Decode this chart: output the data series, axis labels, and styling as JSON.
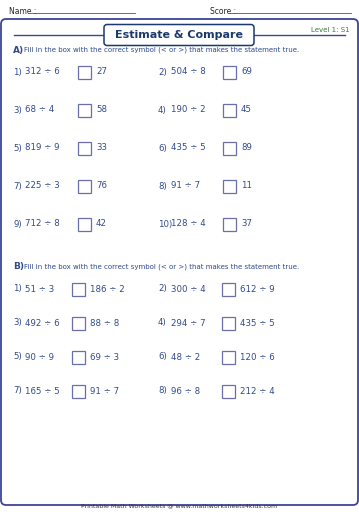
{
  "title": "Estimate & Compare",
  "level": "Level 1: S1",
  "name_label": "Name :",
  "score_label": "Score :",
  "section_A_instruction": "Fill in the box with the correct symbol (< or >) that makes the statement true.",
  "section_B_instruction": "Fill in the box with the correct symbol (< or >) that makes the statement true.",
  "section_A_label": "A)",
  "section_B_label": "B)",
  "section_A_rows": [
    [
      "1)",
      "312 ÷ 6",
      "27",
      "2)",
      "504 ÷ 8",
      "69"
    ],
    [
      "3)",
      "68 ÷ 4",
      "58",
      "4)",
      "190 ÷ 2",
      "45"
    ],
    [
      "5)",
      "819 ÷ 9",
      "33",
      "6)",
      "435 ÷ 5",
      "89"
    ],
    [
      "7)",
      "225 ÷ 3",
      "76",
      "8)",
      "91 ÷ 7",
      "11"
    ],
    [
      "9)",
      "712 ÷ 8",
      "42",
      "10)",
      "128 ÷ 4",
      "37"
    ]
  ],
  "section_B_rows": [
    [
      "1)",
      "51 ÷ 3",
      "186 ÷ 2",
      "2)",
      "300 ÷ 4",
      "612 ÷ 9"
    ],
    [
      "3)",
      "492 ÷ 6",
      "88 ÷ 8",
      "4)",
      "294 ÷ 7",
      "435 ÷ 5"
    ],
    [
      "5)",
      "90 ÷ 9",
      "69 ÷ 3",
      "6)",
      "48 ÷ 2",
      "120 ÷ 6"
    ],
    [
      "7)",
      "165 ÷ 5",
      "91 ÷ 7",
      "8)",
      "96 ÷ 8",
      "212 ÷ 4"
    ]
  ],
  "footer": "Printable Math Worksheets @ www.mathworksheets4kids.com",
  "bg_color": "#ffffff",
  "border_color": "#3d4496",
  "title_color": "#1a3a6e",
  "title_border_color": "#1a3a6e",
  "level_color": "#3a7a3a",
  "instruction_color": "#2e4a8a",
  "problem_color": "#2e4a8a",
  "section_label_color": "#2e4a8a",
  "header_color": "#222222",
  "footer_color": "#333333",
  "box_edge_color": "#6a6faa"
}
